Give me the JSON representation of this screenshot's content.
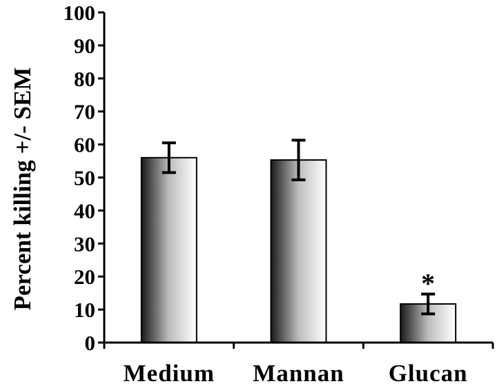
{
  "chart_data": {
    "type": "bar",
    "title": "",
    "xlabel": "",
    "ylabel": "Percent killing +/- SEM",
    "ylim": [
      0,
      100
    ],
    "yticks": [
      "0",
      "10",
      "20",
      "30",
      "40",
      "50",
      "60",
      "70",
      "80",
      "90",
      "100"
    ],
    "categories": [
      "Medium",
      "Mannan",
      "Glucan"
    ],
    "values": [
      56,
      55.3,
      11.7
    ],
    "errors": [
      4.5,
      6,
      3
    ],
    "annotations": [
      {
        "category": "Glucan",
        "text": "*"
      }
    ],
    "grid": false,
    "legend": "none",
    "colors": {
      "bar_dark": "#1a1a1a",
      "bar_light": "#ffffff",
      "axis": "#000000"
    }
  }
}
